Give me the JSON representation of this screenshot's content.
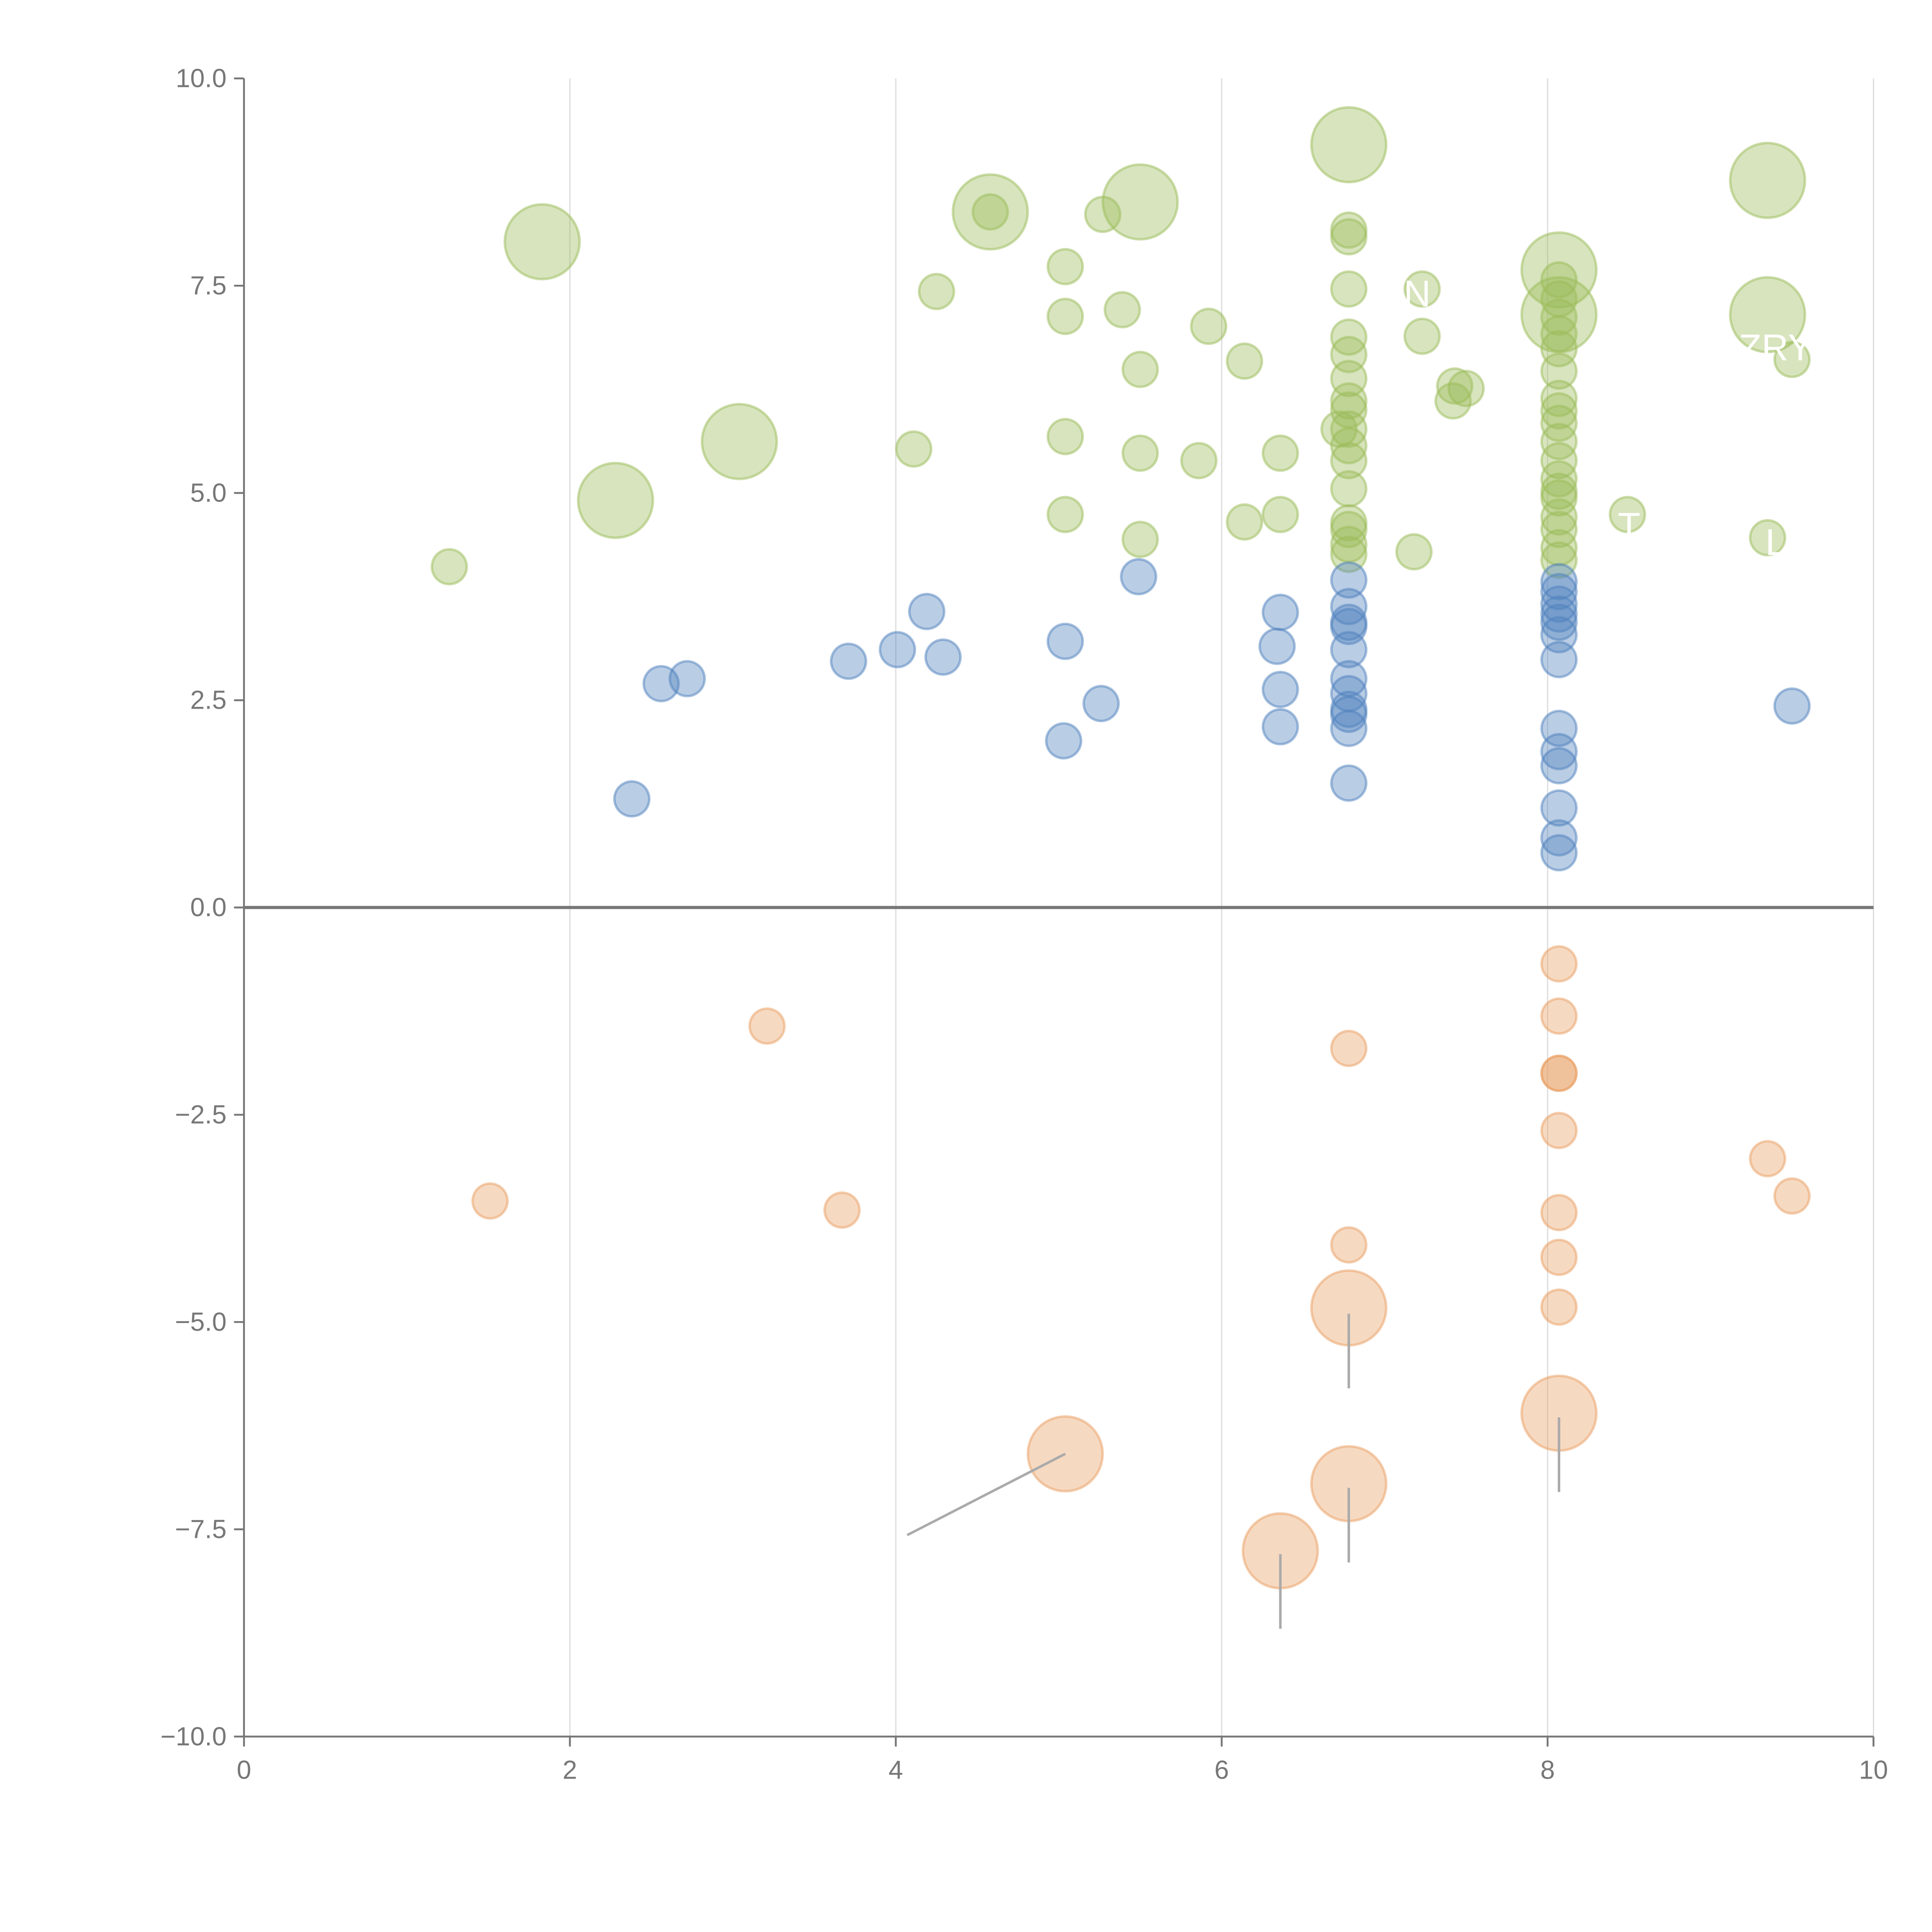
{
  "chart_data": {
    "type": "scatter",
    "title": "",
    "xlabel": "",
    "ylabel": "",
    "xlim": [
      0,
      10
    ],
    "ylim": [
      -10,
      10
    ],
    "xticks": [
      0,
      2,
      4,
      6,
      8,
      10
    ],
    "xtick_labels": [
      "0",
      "2",
      "4",
      "6",
      "8",
      "10"
    ],
    "yticks": [
      10,
      7.5,
      5,
      2.5,
      0,
      -2.5,
      -5,
      -7.5,
      -10
    ],
    "ytick_labels": [
      "10.0",
      "7.5",
      "5.0",
      "2.5",
      "0.0",
      "−2.5",
      "−5.0",
      "−7.5",
      "−10.0"
    ],
    "grid": "vertical",
    "legend": "none",
    "point_format": "[x, y, relative_size]",
    "series": [
      {
        "name": "green",
        "color": "#9bbb59",
        "points": [
          [
            1.26,
            4.11,
            1
          ],
          [
            1.83,
            8.03,
            4.6
          ],
          [
            2.28,
            4.91,
            4.6
          ],
          [
            3.04,
            5.62,
            4.6
          ],
          [
            4.25,
            7.43,
            1
          ],
          [
            4.11,
            5.53,
            1
          ],
          [
            4.58,
            8.39,
            4.6
          ],
          [
            4.58,
            8.39,
            1
          ],
          [
            5.04,
            7.73,
            1
          ],
          [
            5.04,
            7.13,
            1
          ],
          [
            5.04,
            5.68,
            1
          ],
          [
            5.04,
            4.74,
            1
          ],
          [
            5.27,
            8.36,
            1
          ],
          [
            5.39,
            7.21,
            1
          ],
          [
            5.5,
            8.51,
            4.6
          ],
          [
            5.5,
            6.49,
            1
          ],
          [
            5.5,
            5.48,
            1
          ],
          [
            5.5,
            4.44,
            1
          ],
          [
            5.86,
            5.39,
            1
          ],
          [
            5.92,
            7.01,
            1
          ],
          [
            6.14,
            6.59,
            1
          ],
          [
            6.14,
            4.65,
            1
          ],
          [
            6.36,
            5.48,
            1
          ],
          [
            6.36,
            4.74,
            1
          ],
          [
            6.78,
            9.2,
            4.6
          ],
          [
            6.78,
            8.17,
            1
          ],
          [
            6.78,
            8.09,
            1
          ],
          [
            6.78,
            7.46,
            1
          ],
          [
            6.78,
            6.88,
            1
          ],
          [
            6.78,
            6.67,
            1
          ],
          [
            6.78,
            6.38,
            1
          ],
          [
            6.78,
            6.11,
            1
          ],
          [
            6.78,
            6.0,
            1
          ],
          [
            6.78,
            5.77,
            1
          ],
          [
            6.78,
            5.57,
            1
          ],
          [
            6.78,
            5.39,
            1
          ],
          [
            6.78,
            5.05,
            1
          ],
          [
            6.78,
            4.64,
            1
          ],
          [
            6.78,
            4.56,
            1
          ],
          [
            6.78,
            4.38,
            1
          ],
          [
            6.78,
            4.26,
            1
          ],
          [
            6.72,
            5.77,
            1
          ],
          [
            7.23,
            7.46,
            1
          ],
          [
            7.23,
            6.89,
            1
          ],
          [
            7.18,
            4.29,
            1
          ],
          [
            7.42,
            6.11,
            1
          ],
          [
            7.5,
            6.26,
            1
          ],
          [
            7.43,
            6.29,
            1
          ],
          [
            8.07,
            7.69,
            4.6
          ],
          [
            8.07,
            7.15,
            4.6
          ],
          [
            8.07,
            7.57,
            1
          ],
          [
            8.07,
            7.34,
            1
          ],
          [
            8.07,
            7.12,
            1
          ],
          [
            8.07,
            6.92,
            1
          ],
          [
            8.07,
            6.74,
            1
          ],
          [
            8.07,
            6.47,
            1
          ],
          [
            8.07,
            6.14,
            1
          ],
          [
            8.07,
            5.99,
            1
          ],
          [
            8.07,
            5.84,
            1
          ],
          [
            8.07,
            5.62,
            1
          ],
          [
            8.07,
            5.39,
            1
          ],
          [
            8.07,
            5.17,
            1
          ],
          [
            8.07,
            5.02,
            1
          ],
          [
            8.07,
            4.94,
            1
          ],
          [
            8.07,
            4.71,
            1
          ],
          [
            8.07,
            4.56,
            1
          ],
          [
            8.07,
            4.34,
            1
          ],
          [
            8.07,
            4.19,
            1
          ],
          [
            8.49,
            4.74,
            1
          ],
          [
            9.35,
            8.77,
            4.6
          ],
          [
            9.35,
            7.15,
            4.6
          ],
          [
            9.5,
            6.61,
            1
          ],
          [
            9.35,
            4.46,
            1
          ]
        ]
      },
      {
        "name": "blue",
        "color": "#4f81bd",
        "points": [
          [
            2.38,
            1.31,
            1
          ],
          [
            2.56,
            2.7,
            1
          ],
          [
            2.72,
            2.76,
            1
          ],
          [
            3.71,
            2.97,
            1
          ],
          [
            4.01,
            3.11,
            1
          ],
          [
            4.19,
            3.57,
            1
          ],
          [
            4.29,
            3.02,
            1
          ],
          [
            5.04,
            3.21,
            1
          ],
          [
            5.03,
            2.01,
            1
          ],
          [
            5.26,
            2.46,
            1
          ],
          [
            5.49,
            3.99,
            1
          ],
          [
            6.36,
            3.56,
            1
          ],
          [
            6.34,
            3.15,
            1
          ],
          [
            6.36,
            2.63,
            1
          ],
          [
            6.36,
            2.18,
            1
          ],
          [
            6.78,
            3.95,
            1
          ],
          [
            6.78,
            3.63,
            1
          ],
          [
            6.78,
            3.44,
            1
          ],
          [
            6.78,
            3.39,
            1
          ],
          [
            6.78,
            3.11,
            1
          ],
          [
            6.78,
            2.76,
            1
          ],
          [
            6.78,
            2.58,
            1
          ],
          [
            6.78,
            2.39,
            1
          ],
          [
            6.78,
            2.33,
            1
          ],
          [
            6.78,
            2.16,
            1
          ],
          [
            6.78,
            1.5,
            1
          ],
          [
            8.07,
            3.93,
            1
          ],
          [
            8.07,
            3.81,
            1
          ],
          [
            8.07,
            3.66,
            1
          ],
          [
            8.07,
            3.54,
            1
          ],
          [
            8.07,
            3.44,
            1
          ],
          [
            8.07,
            3.29,
            1
          ],
          [
            8.07,
            2.99,
            1
          ],
          [
            8.07,
            2.16,
            1
          ],
          [
            8.07,
            1.88,
            1
          ],
          [
            8.07,
            1.71,
            1
          ],
          [
            8.07,
            1.2,
            1
          ],
          [
            8.07,
            0.84,
            1
          ],
          [
            8.07,
            0.66,
            1
          ],
          [
            9.5,
            2.43,
            1
          ]
        ]
      },
      {
        "name": "orange",
        "color": "#e9a064",
        "points": [
          [
            1.51,
            -3.54,
            1
          ],
          [
            3.21,
            -1.43,
            1
          ],
          [
            3.67,
            -3.65,
            1
          ],
          [
            5.04,
            -6.59,
            4.6
          ],
          [
            6.36,
            -7.76,
            4.6
          ],
          [
            6.78,
            -1.7,
            1
          ],
          [
            6.78,
            -4.07,
            1
          ],
          [
            6.78,
            -4.83,
            4.6
          ],
          [
            6.78,
            -6.95,
            4.6
          ],
          [
            8.07,
            -0.68,
            1
          ],
          [
            8.07,
            -1.31,
            1
          ],
          [
            8.07,
            -2.0,
            1
          ],
          [
            8.07,
            -2.0,
            1
          ],
          [
            8.07,
            -2.69,
            1
          ],
          [
            8.07,
            -3.68,
            1
          ],
          [
            8.07,
            -4.22,
            1
          ],
          [
            8.07,
            -4.82,
            1
          ],
          [
            8.07,
            -6.1,
            4.6
          ],
          [
            9.35,
            -3.03,
            1
          ],
          [
            9.5,
            -3.48,
            1
          ]
        ]
      }
    ],
    "annotations": [
      {
        "text": "N",
        "x": 7.2,
        "y": 7.4
      },
      {
        "text": "ZRY",
        "x": 9.4,
        "y": 6.75
      },
      {
        "text": "T",
        "x": 8.5,
        "y": 4.6
      },
      {
        "text": "L",
        "x": 9.4,
        "y": 4.4
      }
    ],
    "leaders": [
      {
        "x1": 5.04,
        "y1": -6.59,
        "x2": 4.07,
        "y2": -7.57
      },
      {
        "x1": 6.36,
        "y1": -7.8,
        "x2": 6.36,
        "y2": -8.7
      },
      {
        "x1": 6.78,
        "y1": -4.9,
        "x2": 6.78,
        "y2": -5.8
      },
      {
        "x1": 6.78,
        "y1": -7.0,
        "x2": 6.78,
        "y2": -7.9
      },
      {
        "x1": 8.07,
        "y1": -6.15,
        "x2": 8.07,
        "y2": -7.05
      }
    ]
  }
}
